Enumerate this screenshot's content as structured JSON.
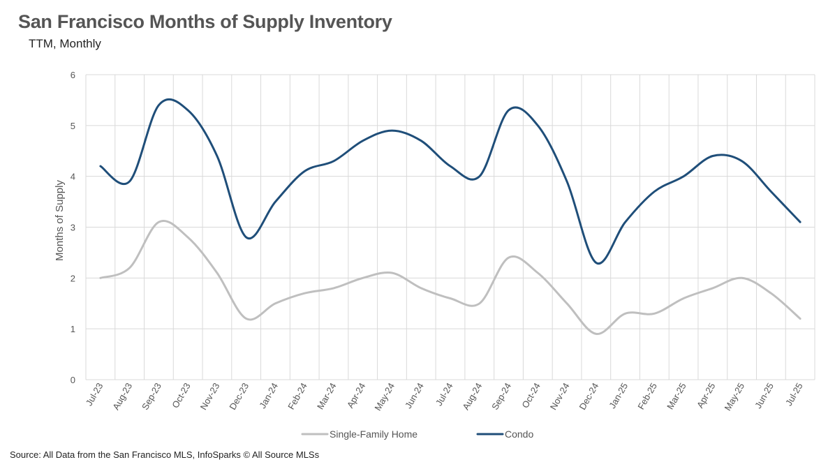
{
  "header": {
    "title": "San Francisco Months of Supply Inventory",
    "subtitle": "TTM, Monthly"
  },
  "footer": {
    "source": "Source: All Data from the San Francisco MLS, InfoSparks © All Source MLSs"
  },
  "chart_data": {
    "type": "line",
    "title": "San Francisco Months of Supply Inventory",
    "subtitle": "TTM, Monthly",
    "xlabel": "",
    "ylabel": "Months of Supply",
    "ylim": [
      0,
      6
    ],
    "yticks": [
      0,
      1,
      2,
      3,
      4,
      5,
      6
    ],
    "grid": true,
    "legend_position": "bottom",
    "categories": [
      "Jul-23",
      "Aug-23",
      "Sep-23",
      "Oct-23",
      "Nov-23",
      "Dec-23",
      "Jan-24",
      "Feb-24",
      "Mar-24",
      "Apr-24",
      "May-24",
      "Jun-24",
      "Jul-24",
      "Aug-24",
      "Sep-24",
      "Oct-24",
      "Nov-24",
      "Dec-24",
      "Jan-25",
      "Feb-25",
      "Mar-25",
      "Apr-25",
      "May-25",
      "Jun-25",
      "Jul-25"
    ],
    "series": [
      {
        "name": "Single-Family Home",
        "color": "#bfbfbf",
        "values": [
          2.0,
          2.2,
          3.1,
          2.8,
          2.1,
          1.2,
          1.5,
          1.7,
          1.8,
          2.0,
          2.1,
          1.8,
          1.6,
          1.5,
          2.4,
          2.1,
          1.5,
          0.9,
          1.3,
          1.3,
          1.6,
          1.8,
          2.0,
          1.7,
          1.2
        ]
      },
      {
        "name": "Condo",
        "color": "#1f4e79",
        "values": [
          4.2,
          3.9,
          5.4,
          5.3,
          4.4,
          2.8,
          3.5,
          4.1,
          4.3,
          4.7,
          4.9,
          4.7,
          4.2,
          4.0,
          5.3,
          5.0,
          3.9,
          2.3,
          3.1,
          3.7,
          4.0,
          4.4,
          4.3,
          3.7,
          3.1
        ]
      }
    ]
  }
}
